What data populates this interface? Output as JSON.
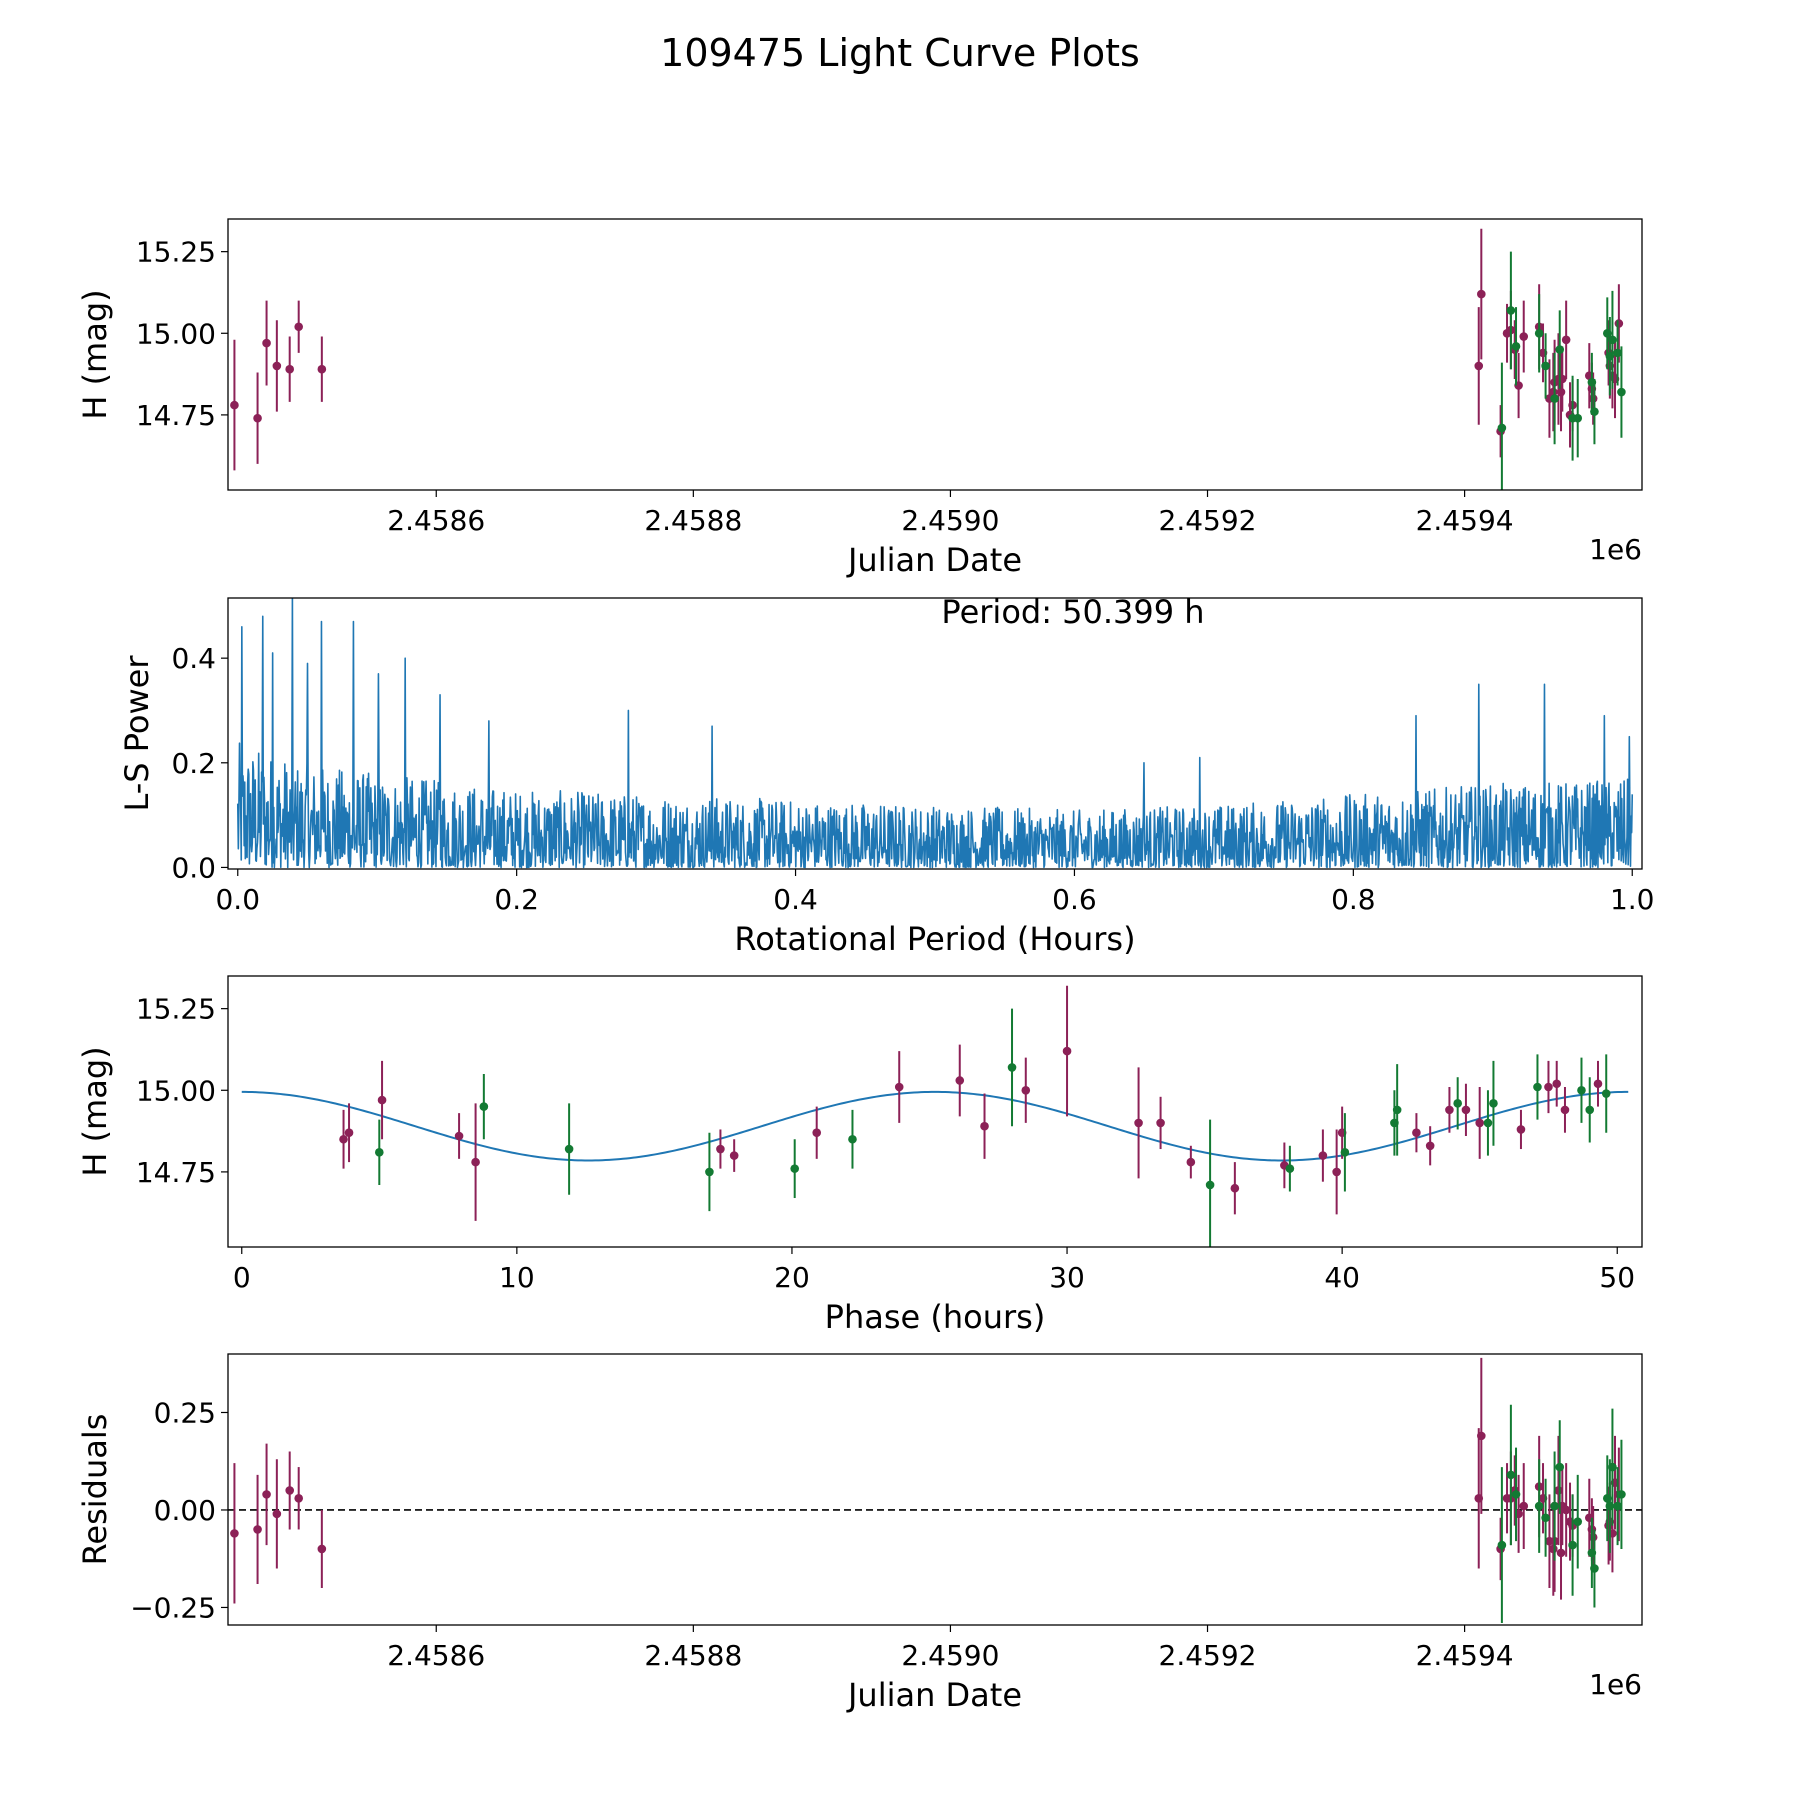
{
  "figure": {
    "title": "109475 Light Curve Plots"
  },
  "colors": {
    "magenta_points": "#8c2157",
    "green_points": "#137a33",
    "periodogram": "#1f77b4",
    "fit_curve": "#1f77b4",
    "axes": "#000000"
  },
  "chart_data": [
    {
      "id": "lightcurve",
      "type": "scatter",
      "xlabel": "Julian Date",
      "ylabel": "H (mag)",
      "x_offset_label": "1e6",
      "xlim": [
        2.458438,
        2.459538
      ],
      "ylim": [
        14.52,
        15.35
      ],
      "xticks": [
        {
          "value": 2.4586,
          "label": "2.4586"
        },
        {
          "value": 2.4588,
          "label": "2.4588"
        },
        {
          "value": 2.459,
          "label": "2.4590"
        },
        {
          "value": 2.4592,
          "label": "2.4592"
        },
        {
          "value": 2.4594,
          "label": "2.4594"
        }
      ],
      "yticks": [
        {
          "value": 14.75,
          "label": "14.75"
        },
        {
          "value": 15.0,
          "label": "15.00"
        },
        {
          "value": 15.25,
          "label": "15.25"
        }
      ],
      "series": [
        {
          "name": "magenta",
          "color": "#8c2157",
          "x": [
            2.458443,
            2.458461,
            2.458468,
            2.458476,
            2.458486,
            2.458493,
            2.458511,
            2.459411,
            2.459413,
            2.459428,
            2.459433,
            2.459436,
            2.459439,
            2.459442,
            2.459446,
            2.459458,
            2.459461,
            2.459466,
            2.459469,
            2.45947,
            2.459473,
            2.459475,
            2.459476,
            2.459479,
            2.459482,
            2.459484,
            2.459497,
            2.459499,
            2.4595,
            2.459512,
            2.459513,
            2.459515,
            2.459517,
            2.45952
          ],
          "y": [
            14.78,
            14.74,
            14.97,
            14.9,
            14.89,
            15.02,
            14.89,
            14.9,
            15.12,
            14.7,
            15.0,
            15.01,
            14.95,
            14.84,
            14.99,
            15.02,
            14.94,
            14.8,
            14.82,
            14.85,
            14.86,
            14.82,
            14.86,
            14.98,
            14.75,
            14.78,
            14.87,
            14.83,
            14.8,
            14.94,
            14.9,
            14.87,
            14.86,
            15.03
          ],
          "yerr": [
            0.2,
            0.14,
            0.13,
            0.14,
            0.1,
            0.08,
            0.1,
            0.18,
            0.2,
            0.08,
            0.09,
            0.12,
            0.09,
            0.1,
            0.11,
            0.13,
            0.09,
            0.12,
            0.12,
            0.13,
            0.14,
            0.12,
            0.1,
            0.12,
            0.1,
            0.08,
            0.1,
            0.08,
            0.08,
            0.1,
            0.1,
            0.1,
            0.12,
            0.12
          ]
        },
        {
          "name": "green",
          "color": "#137a33",
          "x": [
            2.459429,
            2.459436,
            2.45944,
            2.459458,
            2.459463,
            2.45947,
            2.459474,
            2.459484,
            2.459488,
            2.459499,
            2.459501,
            2.459511,
            2.459513,
            2.459515,
            2.459519,
            2.459522
          ],
          "y": [
            14.71,
            15.07,
            14.96,
            15.0,
            14.9,
            14.8,
            14.95,
            14.74,
            14.74,
            14.85,
            14.76,
            15.0,
            14.93,
            14.98,
            14.94,
            14.82
          ],
          "yerr": [
            0.2,
            0.18,
            0.12,
            0.12,
            0.1,
            0.14,
            0.12,
            0.13,
            0.12,
            0.09,
            0.1,
            0.11,
            0.12,
            0.15,
            0.1,
            0.14
          ]
        }
      ]
    },
    {
      "id": "periodogram",
      "type": "line",
      "xlabel": "Rotational Period (Hours)",
      "ylabel": "L-S Power",
      "annotation": "Period: 50.399 h",
      "xlim": [
        -0.007,
        1.007
      ],
      "ylim": [
        -0.003,
        0.515
      ],
      "xticks": [
        {
          "value": 0.0,
          "label": "0.0"
        },
        {
          "value": 0.2,
          "label": "0.2"
        },
        {
          "value": 0.4,
          "label": "0.4"
        },
        {
          "value": 0.6,
          "label": "0.6"
        },
        {
          "value": 0.8,
          "label": "0.8"
        },
        {
          "value": 1.0,
          "label": "1.0"
        }
      ],
      "yticks": [
        {
          "value": 0.0,
          "label": "0.0"
        },
        {
          "value": 0.2,
          "label": "0.2"
        },
        {
          "value": 0.4,
          "label": "0.4"
        }
      ],
      "x_range": [
        0.0,
        1.0
      ],
      "n_points": 2400,
      "envelope": {
        "x": [
          0.0,
          0.05,
          0.1,
          0.2,
          0.3,
          0.4,
          0.5,
          0.6,
          0.7,
          0.8,
          0.9,
          1.0
        ],
        "y": [
          0.24,
          0.2,
          0.18,
          0.15,
          0.14,
          0.13,
          0.12,
          0.11,
          0.12,
          0.14,
          0.16,
          0.17
        ]
      },
      "peaks": [
        {
          "x": 0.003,
          "y": 0.46
        },
        {
          "x": 0.018,
          "y": 0.48
        },
        {
          "x": 0.025,
          "y": 0.41
        },
        {
          "x": 0.039,
          "y": 0.52
        },
        {
          "x": 0.05,
          "y": 0.39
        },
        {
          "x": 0.06,
          "y": 0.47
        },
        {
          "x": 0.083,
          "y": 0.47
        },
        {
          "x": 0.101,
          "y": 0.37
        },
        {
          "x": 0.12,
          "y": 0.4
        },
        {
          "x": 0.145,
          "y": 0.33
        },
        {
          "x": 0.18,
          "y": 0.28
        },
        {
          "x": 0.28,
          "y": 0.3
        },
        {
          "x": 0.34,
          "y": 0.27
        },
        {
          "x": 0.65,
          "y": 0.2
        },
        {
          "x": 0.69,
          "y": 0.21
        },
        {
          "x": 0.845,
          "y": 0.29
        },
        {
          "x": 0.89,
          "y": 0.35
        },
        {
          "x": 0.937,
          "y": 0.35
        },
        {
          "x": 0.98,
          "y": 0.29
        },
        {
          "x": 0.998,
          "y": 0.25
        }
      ]
    },
    {
      "id": "phased",
      "type": "scatter",
      "xlabel": "Phase (hours)",
      "ylabel": "H (mag)",
      "xlim": [
        -0.5,
        50.9
      ],
      "ylim": [
        14.52,
        15.35
      ],
      "xticks": [
        {
          "value": 0,
          "label": "0"
        },
        {
          "value": 10,
          "label": "10"
        },
        {
          "value": 20,
          "label": "20"
        },
        {
          "value": 30,
          "label": "30"
        },
        {
          "value": 40,
          "label": "40"
        },
        {
          "value": 50,
          "label": "50"
        }
      ],
      "yticks": [
        {
          "value": 14.75,
          "label": "14.75"
        },
        {
          "value": 15.0,
          "label": "15.00"
        },
        {
          "value": 15.25,
          "label": "15.25"
        }
      ],
      "fit": {
        "mean": 14.89,
        "amplitude": 0.105,
        "period_hours": 25.2,
        "phase_offset_hours": 0.0,
        "x_range": [
          0,
          50.4
        ]
      },
      "series": [
        {
          "name": "magenta",
          "color": "#8c2157",
          "x": [
            3.7,
            3.9,
            5.1,
            7.9,
            8.5,
            17.4,
            17.9,
            20.9,
            23.9,
            26.1,
            27.0,
            28.5,
            30.0,
            32.6,
            33.4,
            34.5,
            36.1,
            37.9,
            39.3,
            39.8,
            40.0,
            42.7,
            43.2,
            43.9,
            44.5,
            45.0,
            46.5,
            47.5,
            47.8,
            48.1,
            49.3
          ],
          "y": [
            14.85,
            14.87,
            14.97,
            14.86,
            14.78,
            14.82,
            14.8,
            14.87,
            15.01,
            15.03,
            14.89,
            15.0,
            15.12,
            14.9,
            14.9,
            14.78,
            14.7,
            14.77,
            14.8,
            14.75,
            14.87,
            14.87,
            14.83,
            14.94,
            14.94,
            14.9,
            14.88,
            15.01,
            15.02,
            14.94,
            15.02
          ],
          "yerr": [
            0.09,
            0.09,
            0.12,
            0.07,
            0.18,
            0.06,
            0.05,
            0.08,
            0.11,
            0.11,
            0.1,
            0.1,
            0.2,
            0.17,
            0.08,
            0.05,
            0.08,
            0.07,
            0.08,
            0.13,
            0.08,
            0.06,
            0.06,
            0.07,
            0.08,
            0.11,
            0.06,
            0.08,
            0.07,
            0.07,
            0.07
          ]
        },
        {
          "name": "green",
          "color": "#137a33",
          "x": [
            5.0,
            8.8,
            11.9,
            17.0,
            20.1,
            22.2,
            28.0,
            35.2,
            38.1,
            40.1,
            41.9,
            42.0,
            44.2,
            45.3,
            45.5,
            47.1,
            48.7,
            49.0,
            49.6
          ],
          "y": [
            14.81,
            14.95,
            14.82,
            14.75,
            14.76,
            14.85,
            15.07,
            14.71,
            14.76,
            14.81,
            14.9,
            14.94,
            14.96,
            14.9,
            14.96,
            15.01,
            15.0,
            14.94,
            14.99
          ],
          "yerr": [
            0.1,
            0.1,
            0.14,
            0.12,
            0.09,
            0.09,
            0.18,
            0.2,
            0.07,
            0.12,
            0.1,
            0.14,
            0.08,
            0.1,
            0.13,
            0.1,
            0.1,
            0.1,
            0.12
          ]
        }
      ]
    },
    {
      "id": "residuals",
      "type": "scatter",
      "xlabel": "Julian Date",
      "ylabel": "Residuals",
      "x_offset_label": "1e6",
      "xlim": [
        2.458438,
        2.459538
      ],
      "ylim": [
        -0.295,
        0.4
      ],
      "zero_line": true,
      "xticks": [
        {
          "value": 2.4586,
          "label": "2.4586"
        },
        {
          "value": 2.4588,
          "label": "2.4588"
        },
        {
          "value": 2.459,
          "label": "2.4590"
        },
        {
          "value": 2.4592,
          "label": "2.4592"
        },
        {
          "value": 2.4594,
          "label": "2.4594"
        }
      ],
      "yticks": [
        {
          "value": -0.25,
          "label": "−0.25"
        },
        {
          "value": 0.0,
          "label": "0.00"
        },
        {
          "value": 0.25,
          "label": "0.25"
        }
      ],
      "series": [
        {
          "name": "magenta",
          "color": "#8c2157",
          "x": [
            2.458443,
            2.458461,
            2.458468,
            2.458476,
            2.458486,
            2.458493,
            2.458511,
            2.459411,
            2.459413,
            2.459428,
            2.459433,
            2.459436,
            2.459439,
            2.459442,
            2.459446,
            2.459458,
            2.459461,
            2.459466,
            2.459469,
            2.45947,
            2.459473,
            2.459475,
            2.459476,
            2.459479,
            2.459482,
            2.459484,
            2.459497,
            2.459499,
            2.4595,
            2.459512,
            2.459513,
            2.459515,
            2.459517,
            2.45952
          ],
          "y": [
            -0.06,
            -0.05,
            0.04,
            -0.01,
            0.05,
            0.03,
            -0.1,
            0.03,
            0.19,
            -0.1,
            0.03,
            0.03,
            0.05,
            -0.01,
            0.01,
            0.06,
            0.03,
            -0.08,
            -0.1,
            -0.08,
            0.05,
            -0.11,
            0.01,
            0.0,
            -0.03,
            -0.04,
            -0.02,
            -0.05,
            -0.07,
            -0.04,
            -0.03,
            -0.06,
            0.07,
            0.04
          ],
          "yerr": [
            0.18,
            0.14,
            0.13,
            0.14,
            0.1,
            0.08,
            0.1,
            0.18,
            0.2,
            0.08,
            0.09,
            0.12,
            0.09,
            0.1,
            0.11,
            0.13,
            0.09,
            0.12,
            0.12,
            0.13,
            0.14,
            0.12,
            0.1,
            0.12,
            0.1,
            0.08,
            0.1,
            0.08,
            0.08,
            0.1,
            0.1,
            0.1,
            0.12,
            0.12
          ]
        },
        {
          "name": "green",
          "color": "#137a33",
          "x": [
            2.459429,
            2.459436,
            2.45944,
            2.459458,
            2.459463,
            2.45947,
            2.459474,
            2.459484,
            2.459488,
            2.459499,
            2.459501,
            2.459511,
            2.459513,
            2.459515,
            2.459519,
            2.459522
          ],
          "y": [
            -0.09,
            0.09,
            0.04,
            0.01,
            -0.02,
            0.01,
            0.11,
            -0.09,
            -0.03,
            -0.11,
            -0.15,
            0.03,
            0.01,
            0.11,
            0.01,
            0.04
          ],
          "yerr": [
            0.2,
            0.18,
            0.12,
            0.12,
            0.1,
            0.14,
            0.12,
            0.13,
            0.12,
            0.09,
            0.1,
            0.11,
            0.12,
            0.15,
            0.1,
            0.14
          ]
        }
      ]
    }
  ]
}
